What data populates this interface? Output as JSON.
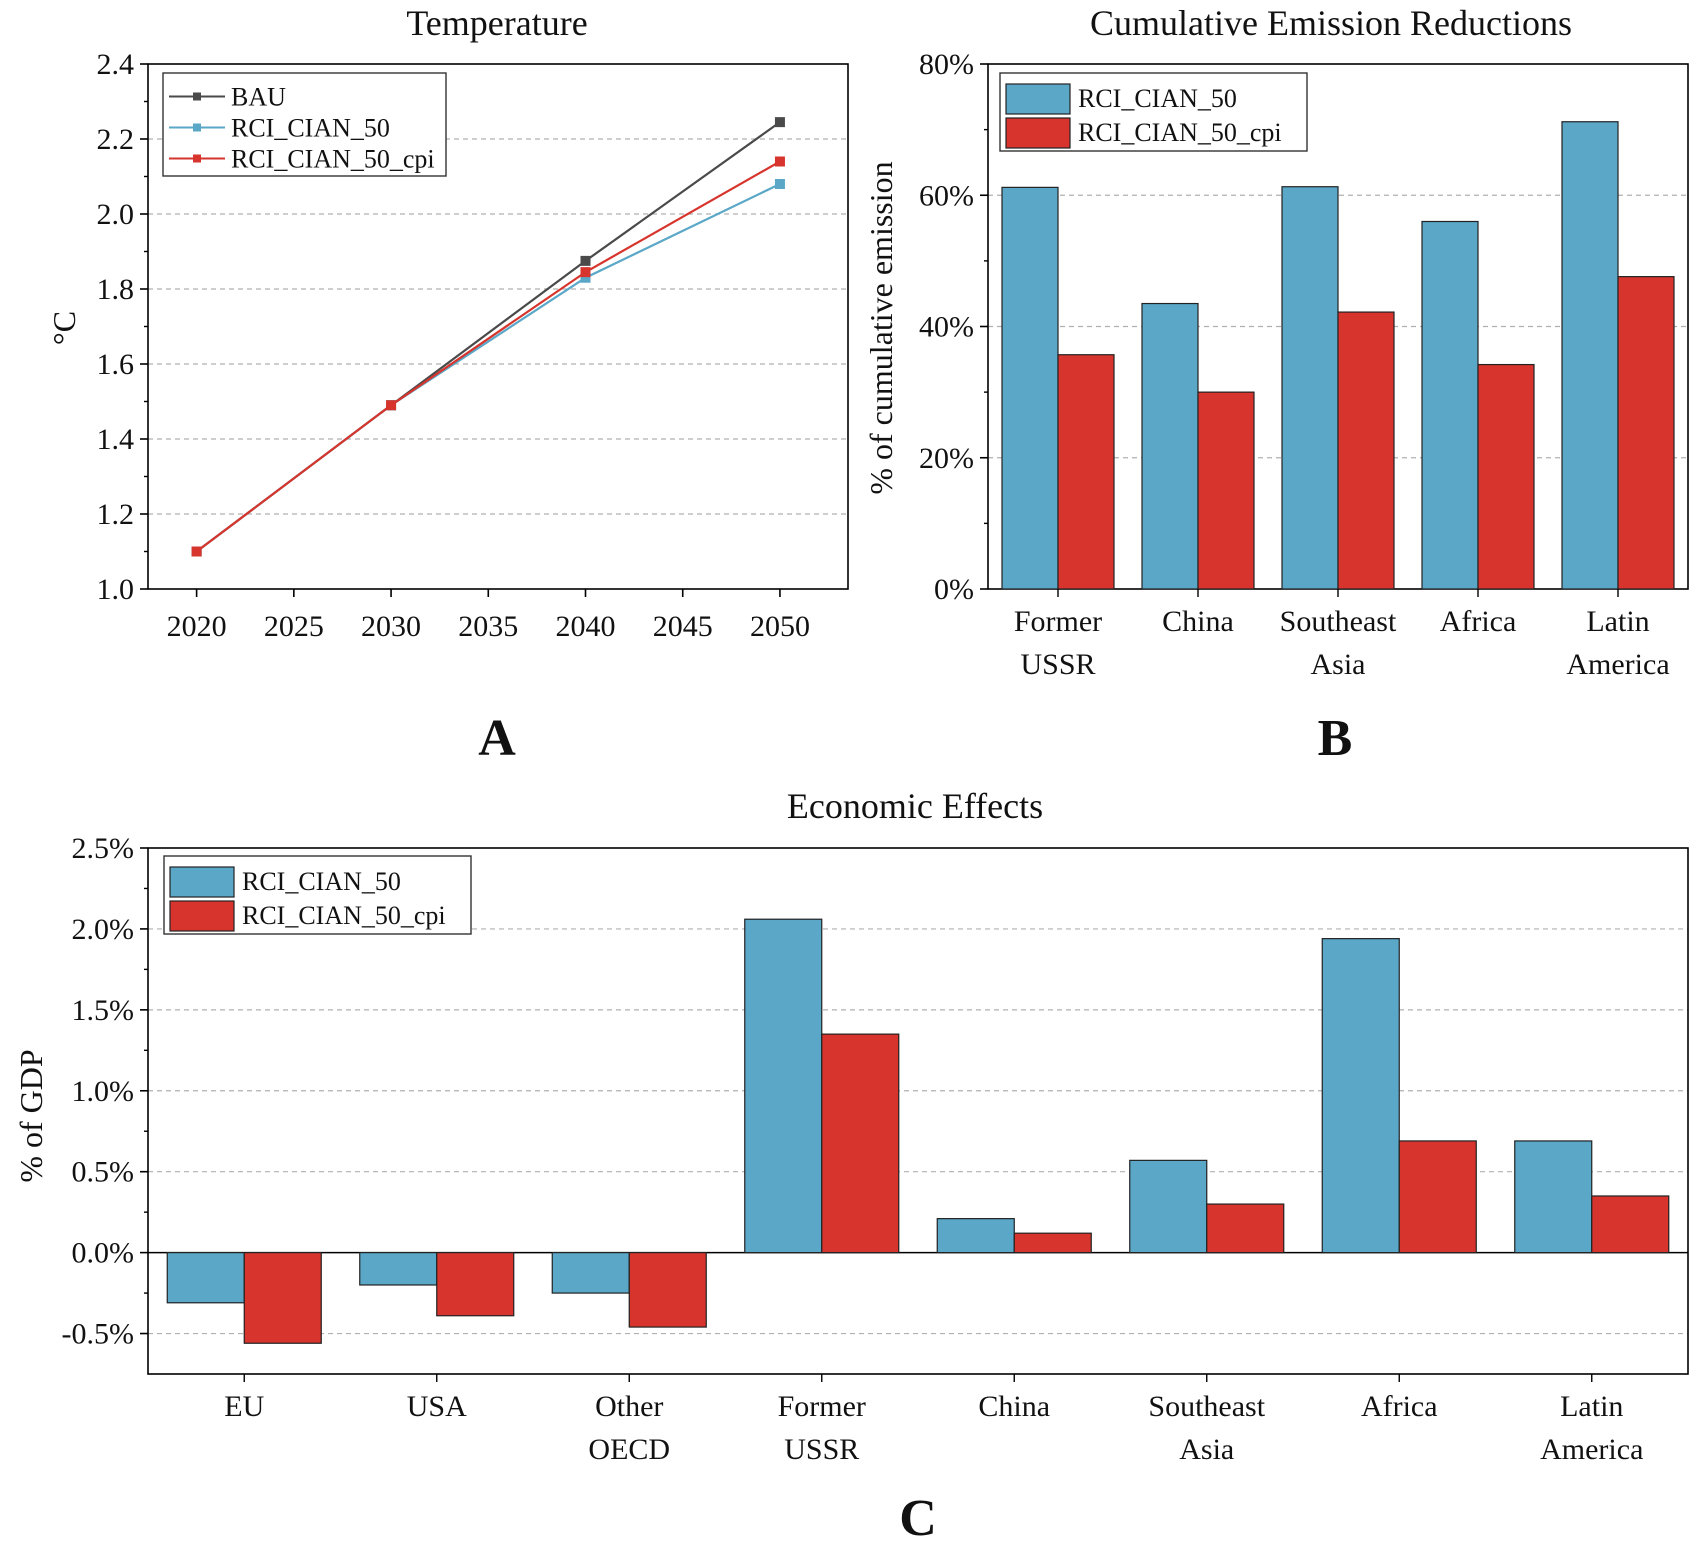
{
  "colors": {
    "bau": "#4a4a4a",
    "rci": "#5aa7c8",
    "cpi": "#d6342c",
    "axis": "#000000",
    "grid": "#b0b0b0"
  },
  "panel_labels": {
    "a": "A",
    "b": "B",
    "c": "C"
  },
  "chart_data": [
    {
      "id": "temperature",
      "type": "line",
      "title": "Temperature",
      "xlabel": "",
      "ylabel": "°C",
      "xlim": [
        2017.5,
        2053.5
      ],
      "ylim": [
        1.0,
        2.4
      ],
      "xticks": [
        2020,
        2025,
        2030,
        2035,
        2040,
        2045,
        2050
      ],
      "yticks": [
        1.0,
        1.2,
        1.4,
        1.6,
        1.8,
        2.0,
        2.2,
        2.4
      ],
      "ytick_labels": [
        "1.0",
        "1.2",
        "1.4",
        "1.6",
        "1.8",
        "2.0",
        "2.2",
        "2.4"
      ],
      "legend": "top-left",
      "series": [
        {
          "name": "BAU",
          "color_key": "bau",
          "x": [
            2020,
            2030,
            2040,
            2050
          ],
          "y": [
            1.1,
            1.49,
            1.875,
            2.245
          ]
        },
        {
          "name": "RCI_CIAN_50",
          "color_key": "rci",
          "x": [
            2020,
            2030,
            2040,
            2050
          ],
          "y": [
            1.1,
            1.49,
            1.83,
            2.08
          ]
        },
        {
          "name": "RCI_CIAN_50_cpi",
          "color_key": "cpi",
          "x": [
            2020,
            2030,
            2040,
            2050
          ],
          "y": [
            1.1,
            1.49,
            1.845,
            2.14
          ]
        }
      ]
    },
    {
      "id": "emissions",
      "type": "bar",
      "title": "Cumulative Emission Reductions",
      "xlabel": "",
      "ylabel": "% of cumulative emission",
      "ylim": [
        0,
        80
      ],
      "yticks": [
        0,
        20,
        40,
        60,
        80
      ],
      "ytick_labels": [
        "0%",
        "20%",
        "40%",
        "60%",
        "80%"
      ],
      "legend": "top-left",
      "categories": [
        [
          "Former",
          "USSR"
        ],
        [
          "China"
        ],
        [
          "Southeast",
          "Asia"
        ],
        [
          "Africa"
        ],
        [
          "Latin",
          "America"
        ]
      ],
      "series": [
        {
          "name": "RCI_CIAN_50",
          "color_key": "rci",
          "values": [
            61.2,
            43.5,
            61.3,
            56.0,
            71.2
          ]
        },
        {
          "name": "RCI_CIAN_50_cpi",
          "color_key": "cpi",
          "values": [
            35.7,
            30.0,
            42.2,
            34.2,
            47.6
          ]
        }
      ]
    },
    {
      "id": "economic",
      "type": "bar",
      "title": "Economic Effects",
      "xlabel": "",
      "ylabel": "% of GDP",
      "ylim": [
        -0.75,
        2.5
      ],
      "yticks": [
        -0.5,
        0,
        0.5,
        1.0,
        1.5,
        2.0,
        2.5
      ],
      "ytick_labels": [
        "-0.5%",
        "0.0%",
        "0.5%",
        "1.0%",
        "1.5%",
        "2.0%",
        "2.5%"
      ],
      "legend": "top-left",
      "categories": [
        [
          "EU"
        ],
        [
          "USA"
        ],
        [
          "Other",
          "OECD"
        ],
        [
          "Former",
          "USSR"
        ],
        [
          "China"
        ],
        [
          "Southeast",
          "Asia"
        ],
        [
          "Africa"
        ],
        [
          "Latin",
          "America"
        ]
      ],
      "series": [
        {
          "name": "RCI_CIAN_50",
          "color_key": "rci",
          "values": [
            -0.31,
            -0.2,
            -0.25,
            2.06,
            0.21,
            0.57,
            1.94,
            0.69
          ]
        },
        {
          "name": "RCI_CIAN_50_cpi",
          "color_key": "cpi",
          "values": [
            -0.56,
            -0.39,
            -0.46,
            1.35,
            0.12,
            0.3,
            0.69,
            0.35
          ]
        }
      ]
    }
  ]
}
